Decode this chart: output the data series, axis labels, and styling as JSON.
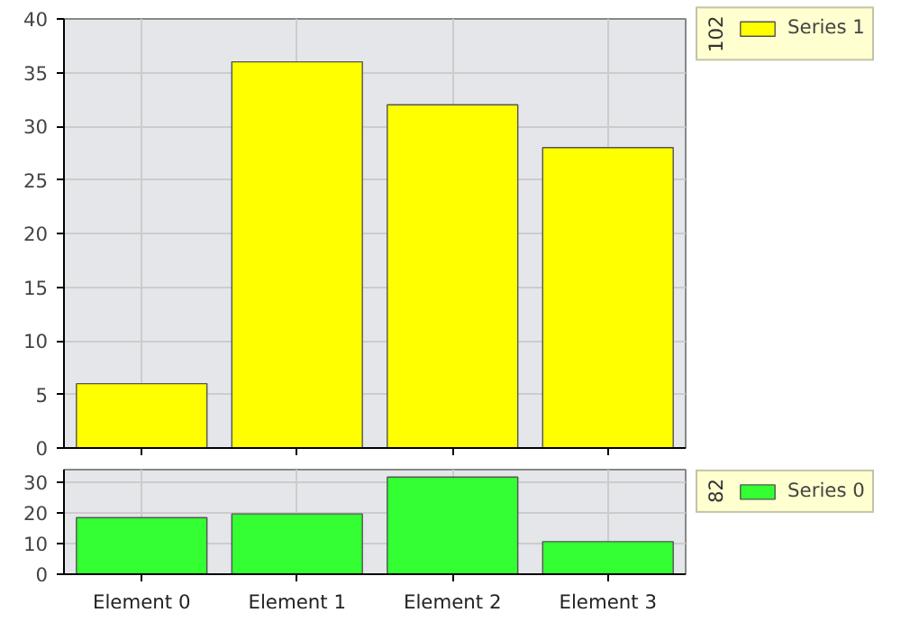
{
  "chart_data": [
    {
      "type": "bar",
      "categories": [
        null,
        null,
        null,
        null
      ],
      "series": [
        {
          "name": "Series 1",
          "color": "#ffff00",
          "values": [
            6,
            36,
            32,
            28
          ]
        }
      ],
      "annotations": [
        "102"
      ],
      "ylim": [
        0,
        40
      ],
      "yticks": [
        0,
        5,
        10,
        15,
        20,
        25,
        30,
        35,
        40
      ],
      "grid": true,
      "legend": "right",
      "tick_labels": "y"
    },
    {
      "type": "bar",
      "categories": [
        "Element 0",
        "Element 1",
        "Element 2",
        "Element 3"
      ],
      "series": [
        {
          "name": "Series 0",
          "color": "#33ff33",
          "values": [
            18.4,
            19.6,
            31.6,
            10.6
          ]
        }
      ],
      "annotations": [
        "82"
      ],
      "ylim": [
        0,
        34
      ],
      "yticks": [
        0,
        10,
        20,
        30
      ],
      "grid": true,
      "legend": "right"
    }
  ]
}
